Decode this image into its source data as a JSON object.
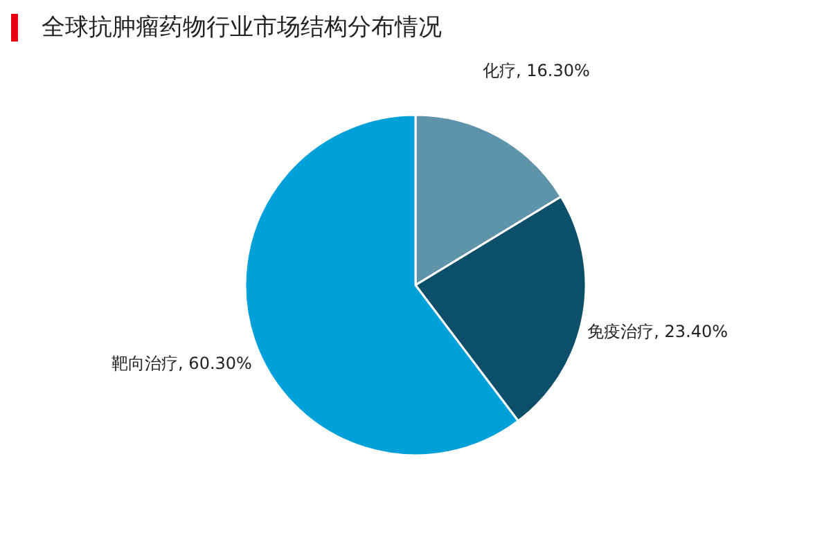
{
  "chart_data": {
    "type": "pie",
    "title": "全球抗肿瘤药物行业市场结构分布情况",
    "categories": [
      "化疗",
      "免疫治疗",
      "靶向治疗"
    ],
    "values": [
      16.3,
      23.4,
      60.3
    ],
    "value_labels": [
      "16.30%",
      "23.40%",
      "60.30%"
    ],
    "colors": [
      "#5e93a9",
      "#0b4f69",
      "#00a1d8"
    ]
  }
}
